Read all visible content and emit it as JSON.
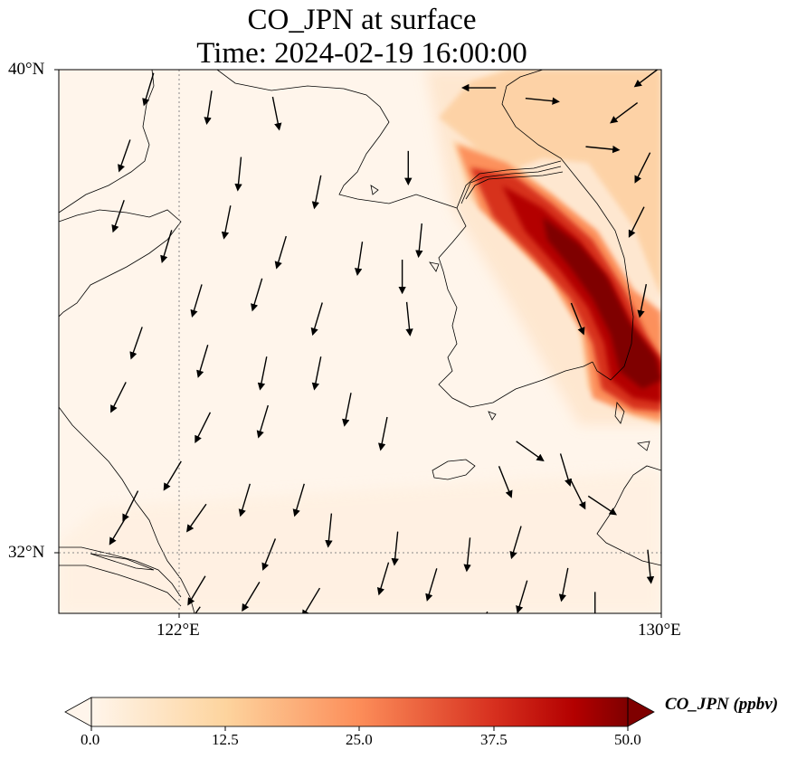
{
  "title": {
    "line1": "CO_JPN at surface",
    "line2": "Time: 2024-02-19 16:00:00"
  },
  "axes": {
    "lat_ticks": [
      "40°N",
      "32°N"
    ],
    "lon_ticks": [
      "122°E",
      "130°E"
    ],
    "lon_range": [
      120,
      130
    ],
    "lat_range": [
      31,
      40
    ],
    "gridlines": true
  },
  "colorbar": {
    "label": "CO_JPN (ppbv)",
    "ticks": [
      "0.0",
      "12.5",
      "25.0",
      "37.5",
      "50.0"
    ],
    "min": 0,
    "max": 50,
    "extend": "both",
    "colormap": [
      "#fff5eb",
      "#fdd49e",
      "#fc8d59",
      "#d7301f",
      "#b30000",
      "#7f0000"
    ]
  },
  "plume": {
    "description_none": "",
    "axis_points_lonlat": [
      [
        127.2,
        37.4
      ],
      [
        128.2,
        36.8
      ],
      [
        129.2,
        35.6
      ],
      [
        129.5,
        34.6
      ],
      [
        130,
        34.0
      ]
    ],
    "peak_value_ppbv": 50
  },
  "wind_arrows": {
    "units": "relative",
    "arrows": [
      [
        121.5,
        39.7,
        0.3,
        1.0
      ],
      [
        122.5,
        39.4,
        0.15,
        1.0
      ],
      [
        123.6,
        39.3,
        -0.2,
        1.0
      ],
      [
        125.8,
        38.4,
        0,
        1.0
      ],
      [
        121.1,
        38.6,
        0.35,
        1.0
      ],
      [
        123.0,
        38.3,
        0.1,
        1.0
      ],
      [
        124.3,
        38.0,
        0.2,
        1.0
      ],
      [
        122.8,
        37.5,
        0.2,
        1.0
      ],
      [
        121.0,
        37.6,
        0.35,
        1.0
      ],
      [
        121.8,
        37.1,
        0.3,
        1.0
      ],
      [
        123.7,
        37.0,
        0.3,
        1.0
      ],
      [
        125.0,
        36.9,
        0.15,
        1.0
      ],
      [
        126.0,
        37.2,
        0.1,
        1.0
      ],
      [
        125.7,
        36.6,
        0,
        1.0
      ],
      [
        122.3,
        36.2,
        0.3,
        1.0
      ],
      [
        123.3,
        36.3,
        0.3,
        1.0
      ],
      [
        124.3,
        35.9,
        0.3,
        1.0
      ],
      [
        125.8,
        35.9,
        -0.1,
        1.0
      ],
      [
        121.3,
        35.5,
        0.35,
        1.0
      ],
      [
        122.4,
        35.2,
        0.3,
        1.0
      ],
      [
        123.4,
        35.0,
        0.2,
        1.0
      ],
      [
        124.3,
        35.0,
        0.2,
        1.0
      ],
      [
        121.0,
        34.6,
        0.5,
        1.0
      ],
      [
        122.4,
        34.1,
        0.5,
        1.0
      ],
      [
        123.4,
        34.2,
        0.3,
        1.0
      ],
      [
        124.8,
        34.4,
        0.2,
        1.0
      ],
      [
        125.4,
        34.0,
        0.2,
        1.0
      ],
      [
        121.9,
        33.3,
        0.6,
        1.0
      ],
      [
        122.3,
        32.6,
        0.7,
        1.0
      ],
      [
        123.1,
        32.9,
        0.3,
        1.0
      ],
      [
        124.0,
        32.9,
        0.3,
        1.0
      ],
      [
        121.0,
        32.4,
        0.6,
        1.0
      ],
      [
        121.2,
        32.8,
        0.5,
        1.0
      ],
      [
        123.5,
        32.0,
        0.4,
        1.0
      ],
      [
        124.5,
        32.4,
        0.1,
        1.0
      ],
      [
        125.6,
        32.1,
        0.1,
        1.0
      ],
      [
        126.8,
        32.0,
        0.1,
        1.0
      ],
      [
        127.6,
        32.2,
        0.3,
        1.0
      ],
      [
        122.3,
        31.4,
        0.6,
        1.0
      ],
      [
        123.2,
        31.3,
        0.6,
        1.0
      ],
      [
        124.2,
        31.2,
        0.6,
        1.0
      ],
      [
        125.4,
        31.6,
        0.3,
        1.0
      ],
      [
        126.2,
        31.5,
        0.3,
        1.0
      ],
      [
        127.7,
        31.3,
        0.3,
        1.0
      ],
      [
        128.4,
        31.5,
        0.2,
        1.0
      ],
      [
        128.9,
        31.1,
        0,
        1.0
      ],
      [
        127.0,
        30.8,
        0.5,
        1.0
      ],
      [
        122.2,
        30.9,
        0.7,
        1.0
      ],
      [
        129.8,
        31.8,
        -0.1,
        1.0
      ],
      [
        128.6,
        33.0,
        -0.5,
        1.0
      ],
      [
        127.4,
        33.2,
        -0.4,
        1.0
      ],
      [
        128.4,
        33.4,
        -0.3,
        1.0
      ],
      [
        129.0,
        32.8,
        -0.6,
        0.4
      ],
      [
        127.8,
        33.7,
        -0.7,
        0.5
      ],
      [
        129.7,
        36.2,
        0.2,
        1.0
      ],
      [
        129.6,
        37.5,
        0.5,
        1.0
      ],
      [
        129.7,
        38.4,
        0.5,
        1.0
      ],
      [
        129.4,
        39.3,
        0.8,
        0.6
      ],
      [
        128.0,
        39.5,
        -1.0,
        0.1
      ],
      [
        127.0,
        39.7,
        1.0,
        0.0
      ],
      [
        129.0,
        38.7,
        -1.0,
        0.1
      ],
      [
        128.6,
        35.9,
        -0.4,
        1.0
      ],
      [
        129.8,
        39.9,
        0.8,
        0.6
      ]
    ]
  }
}
